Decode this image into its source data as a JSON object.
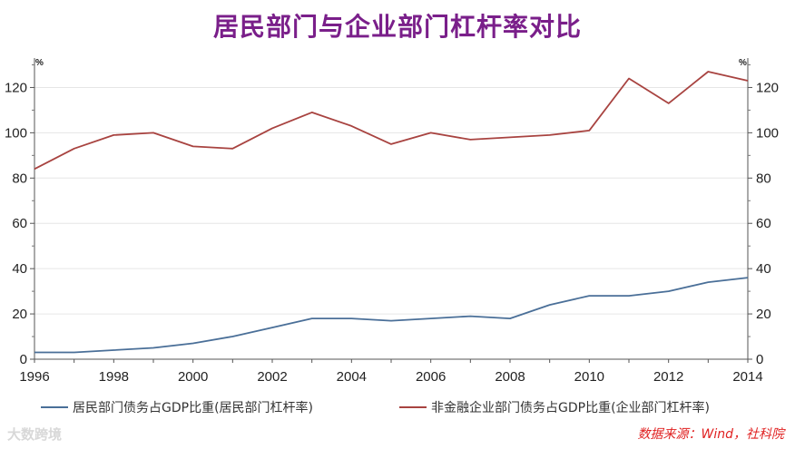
{
  "chart_data": {
    "type": "line",
    "title": "居民部门与企业部门杠杆率对比",
    "unit_left": "%",
    "unit_right": "%",
    "x": [
      1996,
      1997,
      1998,
      1999,
      2000,
      2001,
      2002,
      2003,
      2004,
      2005,
      2006,
      2007,
      2008,
      2009,
      2010,
      2011,
      2012,
      2013,
      2014
    ],
    "x_ticks": [
      "1996",
      "1998",
      "2000",
      "2002",
      "2004",
      "2006",
      "2008",
      "2010",
      "2012",
      "2014"
    ],
    "y_ticks": [
      "0",
      "20",
      "40",
      "60",
      "80",
      "100",
      "120"
    ],
    "xlim": [
      1996,
      2014
    ],
    "ylim": [
      0,
      133
    ],
    "grid": true,
    "legend_position": "bottom",
    "series": [
      {
        "name": "居民部门债务占GDP比重(居民部门杠杆率)",
        "color": "#4a6f98",
        "values": [
          3,
          3,
          4,
          5,
          7,
          10,
          14,
          18,
          18,
          17,
          18,
          19,
          18,
          24,
          28,
          28,
          30,
          34,
          36
        ]
      },
      {
        "name": "非金融企业部门债务占GDP比重(企业部门杠杆率)",
        "color": "#a84340",
        "values": [
          84,
          93,
          99,
          100,
          94,
          93,
          102,
          109,
          103,
          95,
          100,
          97,
          98,
          99,
          101,
          124,
          113,
          127,
          123
        ]
      }
    ]
  },
  "watermark": "大数跨境",
  "source": "数据来源：Wind，社科院"
}
